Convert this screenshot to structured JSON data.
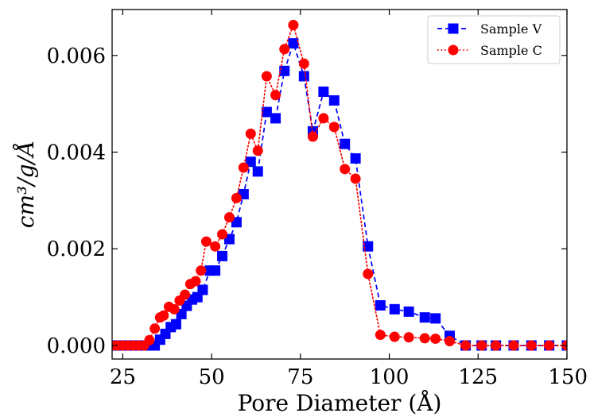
{
  "chart_data": {
    "type": "line",
    "xlabel": "Pore Diameter (Å)",
    "ylabel": "cm³/g/Å",
    "xlim": [
      22,
      150
    ],
    "ylim": [
      -0.00028,
      0.00695
    ],
    "xticks": [
      25,
      50,
      75,
      100,
      125,
      150
    ],
    "xtick_labels": [
      "25",
      "50",
      "75",
      "100",
      "125",
      "150"
    ],
    "yticks": [
      0.0,
      0.002,
      0.004,
      0.006
    ],
    "ytick_labels": [
      "0.000",
      "0.002",
      "0.004",
      "0.006"
    ],
    "grid": false,
    "legend_position": "top-right",
    "series": [
      {
        "name": "Sample V",
        "color": "#0000ff",
        "marker": "square",
        "linestyle": "dashed",
        "points": [
          [
            22,
            0.0
          ],
          [
            23.5,
            0.0
          ],
          [
            25,
            0.0
          ],
          [
            26.5,
            0.0
          ],
          [
            28,
            0.0
          ],
          [
            29.5,
            0.0
          ],
          [
            31,
            0.0
          ],
          [
            32.5,
            0.0
          ],
          [
            34,
            0.0
          ],
          [
            35.5,
            0.00012
          ],
          [
            37,
            0.00024
          ],
          [
            38.5,
            0.00038
          ],
          [
            40,
            0.00044
          ],
          [
            41.5,
            0.00065
          ],
          [
            43,
            0.00082
          ],
          [
            44.5,
            0.00095
          ],
          [
            46,
            0.001
          ],
          [
            47.5,
            0.00115
          ],
          [
            49.5,
            0.00155
          ],
          [
            51,
            0.00155
          ],
          [
            53,
            0.00185
          ],
          [
            55,
            0.0022
          ],
          [
            57,
            0.00255
          ],
          [
            59,
            0.00313
          ],
          [
            61,
            0.0038
          ],
          [
            63,
            0.0036
          ],
          [
            65.5,
            0.00483
          ],
          [
            68,
            0.0047
          ],
          [
            70.5,
            0.00568
          ],
          [
            73,
            0.00625
          ],
          [
            76,
            0.00557
          ],
          [
            78.5,
            0.00443
          ],
          [
            81.5,
            0.00525
          ],
          [
            84.5,
            0.00507
          ],
          [
            87.5,
            0.00417
          ],
          [
            90.5,
            0.00387
          ],
          [
            94,
            0.00205
          ],
          [
            97.5,
            0.00083
          ],
          [
            101.5,
            0.00075
          ],
          [
            105.5,
            0.0007
          ],
          [
            110,
            0.00058
          ],
          [
            113,
            0.00056
          ],
          [
            117,
            0.0002
          ],
          [
            121.5,
            0.0
          ],
          [
            126,
            0.0
          ],
          [
            130,
            0.0
          ],
          [
            135,
            0.0
          ],
          [
            140,
            0.0
          ],
          [
            145,
            0.0
          ],
          [
            150,
            0.0
          ]
        ]
      },
      {
        "name": "Sample C",
        "color": "#ff0000",
        "marker": "circle",
        "linestyle": "dotted",
        "points": [
          [
            22,
            0.0
          ],
          [
            23.5,
            0.0
          ],
          [
            25,
            0.0
          ],
          [
            26.5,
            0.0
          ],
          [
            28,
            0.0
          ],
          [
            29.5,
            0.0
          ],
          [
            31,
            0.0
          ],
          [
            32.5,
            0.00011
          ],
          [
            34,
            0.00035
          ],
          [
            35.5,
            0.00058
          ],
          [
            36.5,
            0.00062
          ],
          [
            38,
            0.0008
          ],
          [
            39.5,
            0.00075
          ],
          [
            41,
            0.00093
          ],
          [
            42.5,
            0.00105
          ],
          [
            44,
            0.00127
          ],
          [
            45.5,
            0.00133
          ],
          [
            47,
            0.00155
          ],
          [
            48.5,
            0.00215
          ],
          [
            51,
            0.00205
          ],
          [
            53,
            0.0023
          ],
          [
            55,
            0.00265
          ],
          [
            57,
            0.00305
          ],
          [
            59,
            0.00368
          ],
          [
            61,
            0.00438
          ],
          [
            63,
            0.00403
          ],
          [
            65.5,
            0.00557
          ],
          [
            68,
            0.00518
          ],
          [
            70.5,
            0.00613
          ],
          [
            73,
            0.00663
          ],
          [
            76,
            0.00583
          ],
          [
            78.5,
            0.00432
          ],
          [
            81.5,
            0.0047
          ],
          [
            84.5,
            0.00452
          ],
          [
            87.5,
            0.00365
          ],
          [
            90.5,
            0.00345
          ],
          [
            94,
            0.00148
          ],
          [
            97.5,
            0.00022
          ],
          [
            101.5,
            0.00018
          ],
          [
            105.5,
            0.00017
          ],
          [
            110,
            0.00015
          ],
          [
            113,
            0.00014
          ],
          [
            117,
            9e-05
          ],
          [
            121.5,
            0.0
          ],
          [
            126,
            0.0
          ],
          [
            130,
            0.0
          ],
          [
            135,
            0.0
          ],
          [
            140,
            0.0
          ],
          [
            145,
            0.0
          ],
          [
            150,
            0.0
          ]
        ]
      }
    ]
  }
}
